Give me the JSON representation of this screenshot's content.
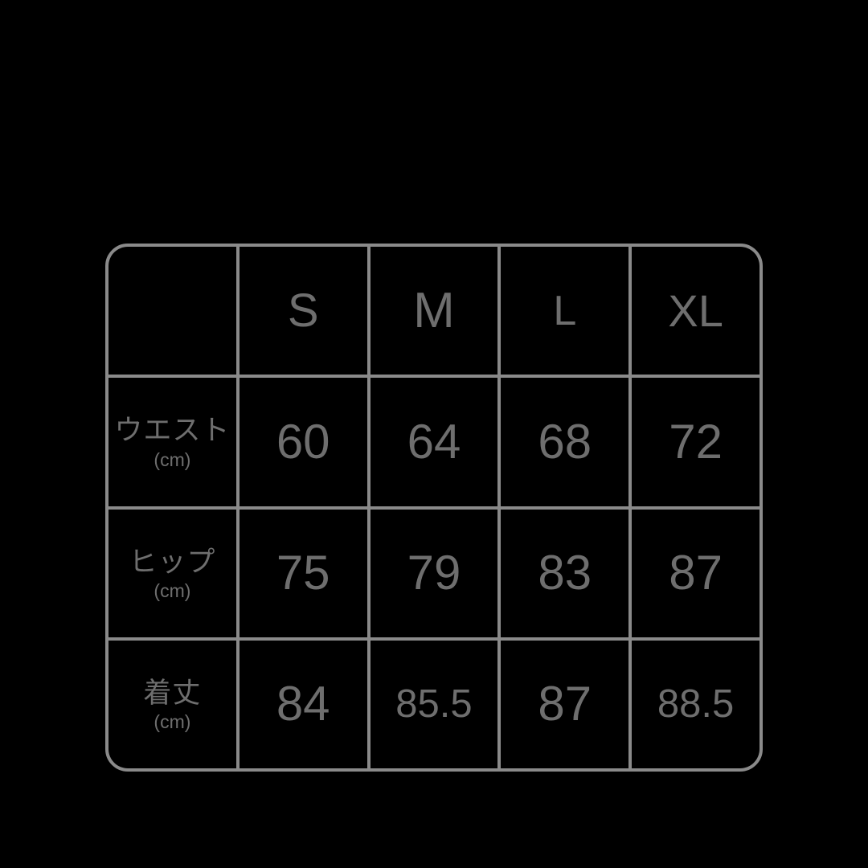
{
  "colors": {
    "background": "#000000",
    "grid_line": "#8a8a8a",
    "text": "#6e6e6e"
  },
  "chart_data": {
    "type": "table",
    "title": "size-chart",
    "columns": [
      "",
      "S",
      "M",
      "L",
      "XL"
    ],
    "unit_label": "(cm)",
    "rows": [
      {
        "label": "ウエスト",
        "unit": "(cm)",
        "values": [
          "60",
          "64",
          "68",
          "72"
        ]
      },
      {
        "label": "ヒップ",
        "unit": "(cm)",
        "values": [
          "75",
          "79",
          "83",
          "87"
        ]
      },
      {
        "label": "着丈",
        "unit": "(cm)",
        "values": [
          "84",
          "85.5",
          "87",
          "88.5"
        ]
      }
    ]
  }
}
